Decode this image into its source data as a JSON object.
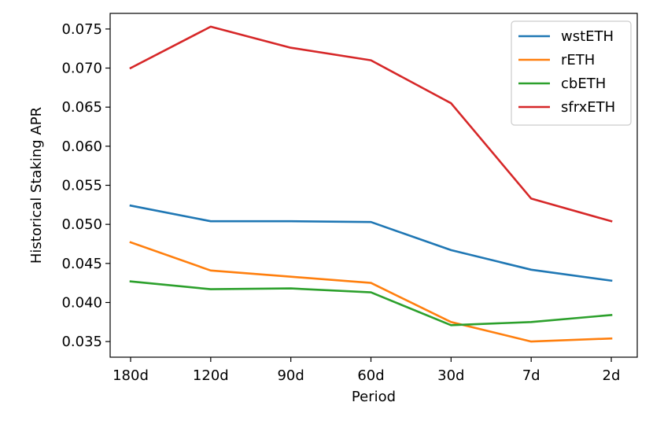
{
  "chart_data": {
    "type": "line",
    "title": "",
    "xlabel": "Period",
    "ylabel": "Historical Staking APR",
    "categories": [
      "180d",
      "120d",
      "90d",
      "60d",
      "30d",
      "7d",
      "2d"
    ],
    "ylim": [
      0.033,
      0.077
    ],
    "yticks": [
      0.035,
      0.04,
      0.045,
      0.05,
      0.055,
      0.06,
      0.065,
      0.07,
      0.075
    ],
    "ytick_labels": [
      "0.035",
      "0.040",
      "0.045",
      "0.050",
      "0.055",
      "0.060",
      "0.065",
      "0.070",
      "0.075"
    ],
    "grid": false,
    "legend": "top-right",
    "series": [
      {
        "name": "wstETH",
        "color": "#1f77b4",
        "values": [
          0.0524,
          0.0504,
          0.0504,
          0.0503,
          0.0467,
          0.0442,
          0.0428
        ]
      },
      {
        "name": "rETH",
        "color": "#ff7f0e",
        "values": [
          0.0477,
          0.0441,
          0.0433,
          0.0425,
          0.0375,
          0.035,
          0.0354
        ]
      },
      {
        "name": "cbETH",
        "color": "#2ca02c",
        "values": [
          0.0427,
          0.0417,
          0.0418,
          0.0413,
          0.0371,
          0.0375,
          0.0384
        ]
      },
      {
        "name": "sfrxETH",
        "color": "#d62728",
        "values": [
          0.07,
          0.0753,
          0.0726,
          0.071,
          0.0655,
          0.0533,
          0.0504
        ]
      }
    ]
  }
}
